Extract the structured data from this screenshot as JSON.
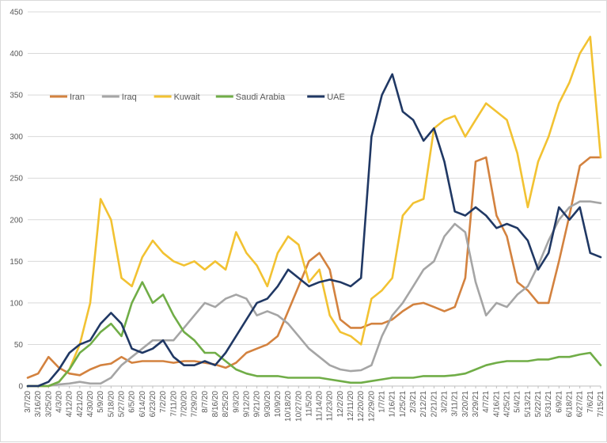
{
  "chart_data": {
    "type": "line",
    "title": "",
    "xlabel": "",
    "ylabel": "",
    "ylim": [
      0,
      450
    ],
    "y_ticks": [
      0,
      50,
      100,
      150,
      200,
      250,
      300,
      350,
      400,
      450
    ],
    "grid": "horizontal",
    "legend_position": "top-left",
    "x_start": "3/7/20",
    "x_step_days": 9,
    "x": [
      "3/7/20",
      "3/16/20",
      "3/25/20",
      "4/3/20",
      "4/12/20",
      "4/21/20",
      "4/30/20",
      "5/9/20",
      "5/18/20",
      "5/27/20",
      "6/5/20",
      "6/14/20",
      "6/23/20",
      "7/2/20",
      "7/11/20",
      "7/20/20",
      "7/29/20",
      "8/7/20",
      "8/16/20",
      "8/25/20",
      "9/3/20",
      "9/12/20",
      "9/21/20",
      "9/30/20",
      "10/9/20",
      "10/18/20",
      "10/27/20",
      "11/5/20",
      "11/14/20",
      "11/23/20",
      "12/2/20",
      "12/11/20",
      "12/20/20",
      "12/29/20",
      "1/7/21",
      "1/16/21",
      "1/25/21",
      "2/3/21",
      "2/12/21",
      "2/21/21",
      "3/2/21",
      "3/11/21",
      "3/20/21",
      "3/29/21",
      "4/7/21",
      "4/16/21",
      "4/25/21",
      "5/4/21",
      "5/13/21",
      "5/22/21",
      "5/31/21",
      "6/9/21",
      "6/18/21",
      "6/27/21",
      "7/6/21",
      "7/15/21"
    ],
    "series": [
      {
        "name": "Iran",
        "color": "#d3823f",
        "values": [
          10,
          15,
          35,
          22,
          15,
          13,
          20,
          25,
          27,
          35,
          28,
          30,
          30,
          30,
          28,
          30,
          30,
          28,
          26,
          22,
          28,
          40,
          45,
          50,
          60,
          90,
          120,
          150,
          160,
          140,
          80,
          70,
          70,
          75,
          75,
          80,
          90,
          98,
          100,
          95,
          90,
          95,
          130,
          270,
          275,
          205,
          180,
          125,
          115,
          100,
          100,
          150,
          205,
          265,
          275,
          275
        ]
      },
      {
        "name": "Iraq",
        "color": "#a5a5a5",
        "values": [
          0,
          0,
          0,
          2,
          3,
          5,
          3,
          3,
          10,
          25,
          35,
          45,
          55,
          55,
          55,
          70,
          85,
          100,
          95,
          105,
          110,
          105,
          85,
          90,
          85,
          75,
          60,
          45,
          35,
          25,
          20,
          18,
          19,
          25,
          60,
          85,
          100,
          120,
          140,
          150,
          180,
          195,
          185,
          125,
          85,
          100,
          95,
          110,
          120,
          145,
          175,
          200,
          215,
          222,
          222,
          220
        ]
      },
      {
        "name": "Kuwait",
        "color": "#f2c232",
        "values": [
          0,
          0,
          0,
          5,
          20,
          50,
          100,
          225,
          200,
          130,
          120,
          155,
          175,
          160,
          150,
          145,
          150,
          140,
          150,
          140,
          185,
          160,
          145,
          120,
          160,
          180,
          170,
          125,
          140,
          85,
          65,
          60,
          50,
          105,
          115,
          130,
          205,
          220,
          225,
          310,
          320,
          325,
          300,
          320,
          340,
          330,
          320,
          280,
          215,
          270,
          300,
          340,
          365,
          400,
          420,
          275
        ]
      },
      {
        "name": "Saudi Arabia",
        "color": "#70ad47",
        "values": [
          0,
          0,
          0,
          5,
          20,
          40,
          50,
          65,
          75,
          60,
          100,
          125,
          100,
          110,
          85,
          65,
          55,
          40,
          40,
          30,
          20,
          15,
          12,
          12,
          12,
          10,
          10,
          10,
          10,
          8,
          6,
          4,
          4,
          6,
          8,
          10,
          10,
          10,
          12,
          12,
          12,
          13,
          15,
          20,
          25,
          28,
          30,
          30,
          30,
          32,
          32,
          35,
          35,
          38,
          40,
          25
        ]
      },
      {
        "name": "UAE",
        "color": "#203864",
        "values": [
          0,
          0,
          5,
          20,
          40,
          50,
          55,
          75,
          88,
          75,
          45,
          40,
          45,
          55,
          35,
          25,
          25,
          30,
          25,
          40,
          60,
          80,
          100,
          105,
          120,
          140,
          130,
          120,
          125,
          128,
          125,
          120,
          130,
          300,
          350,
          375,
          330,
          320,
          295,
          310,
          270,
          210,
          205,
          215,
          205,
          190,
          195,
          190,
          175,
          140,
          160,
          215,
          200,
          215,
          160,
          155
        ]
      }
    ]
  }
}
